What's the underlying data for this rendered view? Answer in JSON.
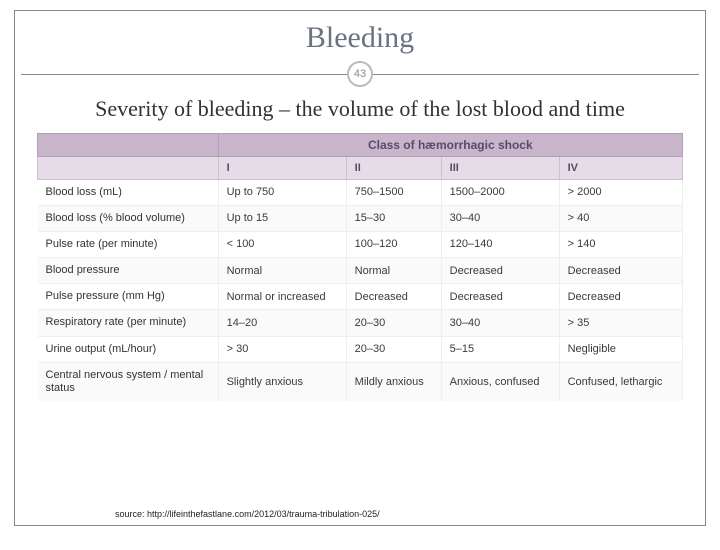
{
  "slide": {
    "title": "Bleeding",
    "number": "43",
    "subtitle": "Severity of bleeding – the volume of the lost blood and time",
    "source_label": "source: http://lifeinthefastlane.com/2012/03/trauma-tribulation-025/"
  },
  "table": {
    "header_span": "Class of hæmorrhagic shock",
    "columns": [
      "I",
      "II",
      "III",
      "IV"
    ],
    "rows": [
      {
        "label": "Blood loss (mL)",
        "cells": [
          "Up to 750",
          "750–1500",
          "1500–2000",
          "> 2000"
        ]
      },
      {
        "label": "Blood loss (% blood volume)",
        "cells": [
          "Up to 15",
          "15–30",
          "30–40",
          "> 40"
        ]
      },
      {
        "label": "Pulse rate (per minute)",
        "cells": [
          "< 100",
          "100–120",
          "120–140",
          "> 140"
        ]
      },
      {
        "label": "Blood pressure",
        "cells": [
          "Normal",
          "Normal",
          "Decreased",
          "Decreased"
        ]
      },
      {
        "label": "Pulse pressure (mm Hg)",
        "cells": [
          "Normal or increased",
          "Decreased",
          "Decreased",
          "Decreased"
        ]
      },
      {
        "label": "Respiratory rate (per minute)",
        "cells": [
          "14–20",
          "20–30",
          "30–40",
          "> 35"
        ]
      },
      {
        "label": "Urine output (mL/hour)",
        "cells": [
          "> 30",
          "20–30",
          "5–15",
          "Negligible"
        ]
      },
      {
        "label": "Central nervous system / mental status",
        "cells": [
          "Slightly anxious",
          "Mildly anxious",
          "Anxious, confused",
          "Confused, lethargic"
        ]
      }
    ]
  },
  "style": {
    "title_color": "#6b7280",
    "header_bg": "#c8b5cb",
    "subheader_bg": "#e6dce8",
    "header_text": "#5a4a6a",
    "row_border": "#eeeeee",
    "badge_border": "#bbbbbb"
  }
}
